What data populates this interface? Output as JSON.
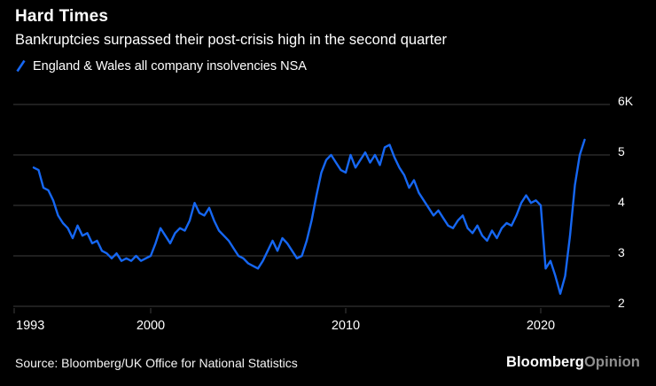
{
  "header": {
    "title": "Hard Times",
    "subtitle": "Bankruptcies surpassed their post-crisis high in the second quarter"
  },
  "legend": {
    "label": "England & Wales all company insolvencies NSA"
  },
  "chart_data": {
    "type": "line",
    "title": "Hard Times",
    "subtitle": "Bankruptcies surpassed their post-crisis high in the second quarter",
    "series_name": "England & Wales all company insolvencies NSA",
    "unit": "thousands of insolvencies per quarter",
    "periodicity": "quarterly",
    "x_start": 1994.0,
    "x_step": 0.25,
    "x_end": 2022.25,
    "values": [
      4.75,
      4.7,
      4.35,
      4.3,
      4.1,
      3.8,
      3.65,
      3.55,
      3.35,
      3.6,
      3.4,
      3.45,
      3.25,
      3.3,
      3.1,
      3.05,
      2.95,
      3.05,
      2.9,
      2.95,
      2.9,
      3.0,
      2.9,
      2.95,
      3.0,
      3.25,
      3.55,
      3.4,
      3.25,
      3.45,
      3.55,
      3.5,
      3.7,
      4.05,
      3.85,
      3.8,
      3.95,
      3.7,
      3.5,
      3.4,
      3.3,
      3.15,
      3.0,
      2.95,
      2.85,
      2.8,
      2.75,
      2.9,
      3.1,
      3.3,
      3.1,
      3.35,
      3.25,
      3.1,
      2.95,
      3.0,
      3.3,
      3.7,
      4.2,
      4.65,
      4.9,
      5.0,
      4.85,
      4.7,
      4.65,
      5.0,
      4.75,
      4.9,
      5.05,
      4.85,
      5.0,
      4.8,
      5.15,
      5.2,
      4.95,
      4.75,
      4.6,
      4.35,
      4.5,
      4.25,
      4.1,
      3.95,
      3.8,
      3.9,
      3.75,
      3.6,
      3.55,
      3.7,
      3.8,
      3.55,
      3.45,
      3.6,
      3.4,
      3.3,
      3.5,
      3.35,
      3.55,
      3.65,
      3.6,
      3.8,
      4.05,
      4.2,
      4.05,
      4.1,
      4.0,
      2.75,
      2.9,
      2.6,
      2.25,
      2.6,
      3.4,
      4.4,
      5.0,
      5.3
    ],
    "xlim": [
      1993,
      2022.6
    ],
    "ylim": [
      2,
      6
    ],
    "y_ticks": [
      {
        "label": "6K",
        "value": 6
      },
      {
        "label": "5",
        "value": 5
      },
      {
        "label": "4",
        "value": 4
      },
      {
        "label": "3",
        "value": 3
      },
      {
        "label": "2",
        "value": 2
      }
    ],
    "x_ticks": [
      {
        "label": "1993",
        "value": 1993
      },
      {
        "label": "2000",
        "value": 2000
      },
      {
        "label": "2010",
        "value": 2010
      },
      {
        "label": "2020",
        "value": 2020
      }
    ],
    "line_color": "#1667f2",
    "grid_color": "#3e3e3e",
    "label_color": "#ffffff",
    "background": "#000000",
    "legend_position": "top-left",
    "grid": "horizontal",
    "y_axis_side": "right"
  },
  "footer": {
    "source": "Source: Bloomberg/UK Office for National Statistics",
    "logo_primary": "Bloomberg",
    "logo_secondary": "Opinion"
  }
}
